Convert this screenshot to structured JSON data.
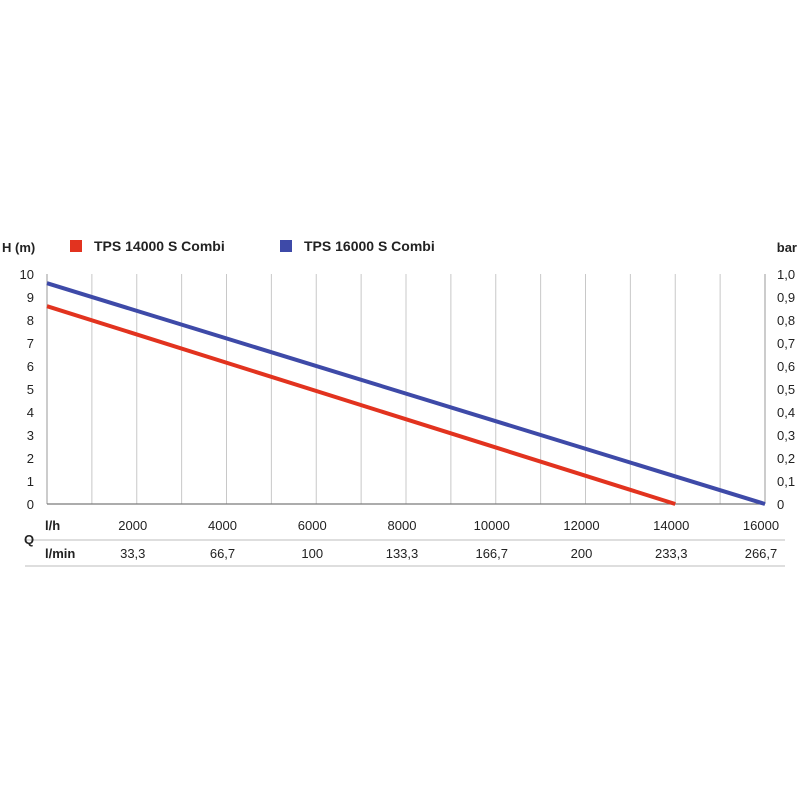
{
  "chart_data": {
    "type": "line",
    "legend_placement": "top",
    "grid": "vertical",
    "y_left": {
      "label": "H (m)",
      "range": [
        0,
        10
      ],
      "ticks": [
        "0",
        "1",
        "2",
        "3",
        "4",
        "5",
        "6",
        "7",
        "8",
        "9",
        "10"
      ]
    },
    "y_right": {
      "label": "bar",
      "range": [
        0,
        1.0
      ],
      "ticks": [
        "0",
        "0,1",
        "0,2",
        "0,3",
        "0,4",
        "0,5",
        "0,6",
        "0,7",
        "0,8",
        "0,9",
        "1,0"
      ]
    },
    "x": {
      "range": [
        0,
        16000
      ],
      "q_label": "Q",
      "row_lh": {
        "unit": "l/h",
        "values": [
          2000,
          4000,
          6000,
          8000,
          10000,
          12000,
          14000,
          16000
        ],
        "labels": [
          "2000",
          "4000",
          "6000",
          "8000",
          "10000",
          "12000",
          "14000",
          "16000"
        ]
      },
      "row_lmin": {
        "unit": "l/min",
        "values": [
          2000,
          4000,
          6000,
          8000,
          10000,
          12000,
          14000,
          16000
        ],
        "labels": [
          "33,3",
          "66,7",
          "100",
          "133,3",
          "166,7",
          "200",
          "233,3",
          "266,7"
        ]
      }
    },
    "series": [
      {
        "name": "TPS 14000 S Combi",
        "color": "#e2331f",
        "x": [
          0,
          14000
        ],
        "y": [
          8.6,
          0
        ]
      },
      {
        "name": "TPS 16000 S Combi",
        "color": "#3e4aa8",
        "x": [
          0,
          16000
        ],
        "y": [
          9.6,
          0
        ]
      }
    ]
  }
}
